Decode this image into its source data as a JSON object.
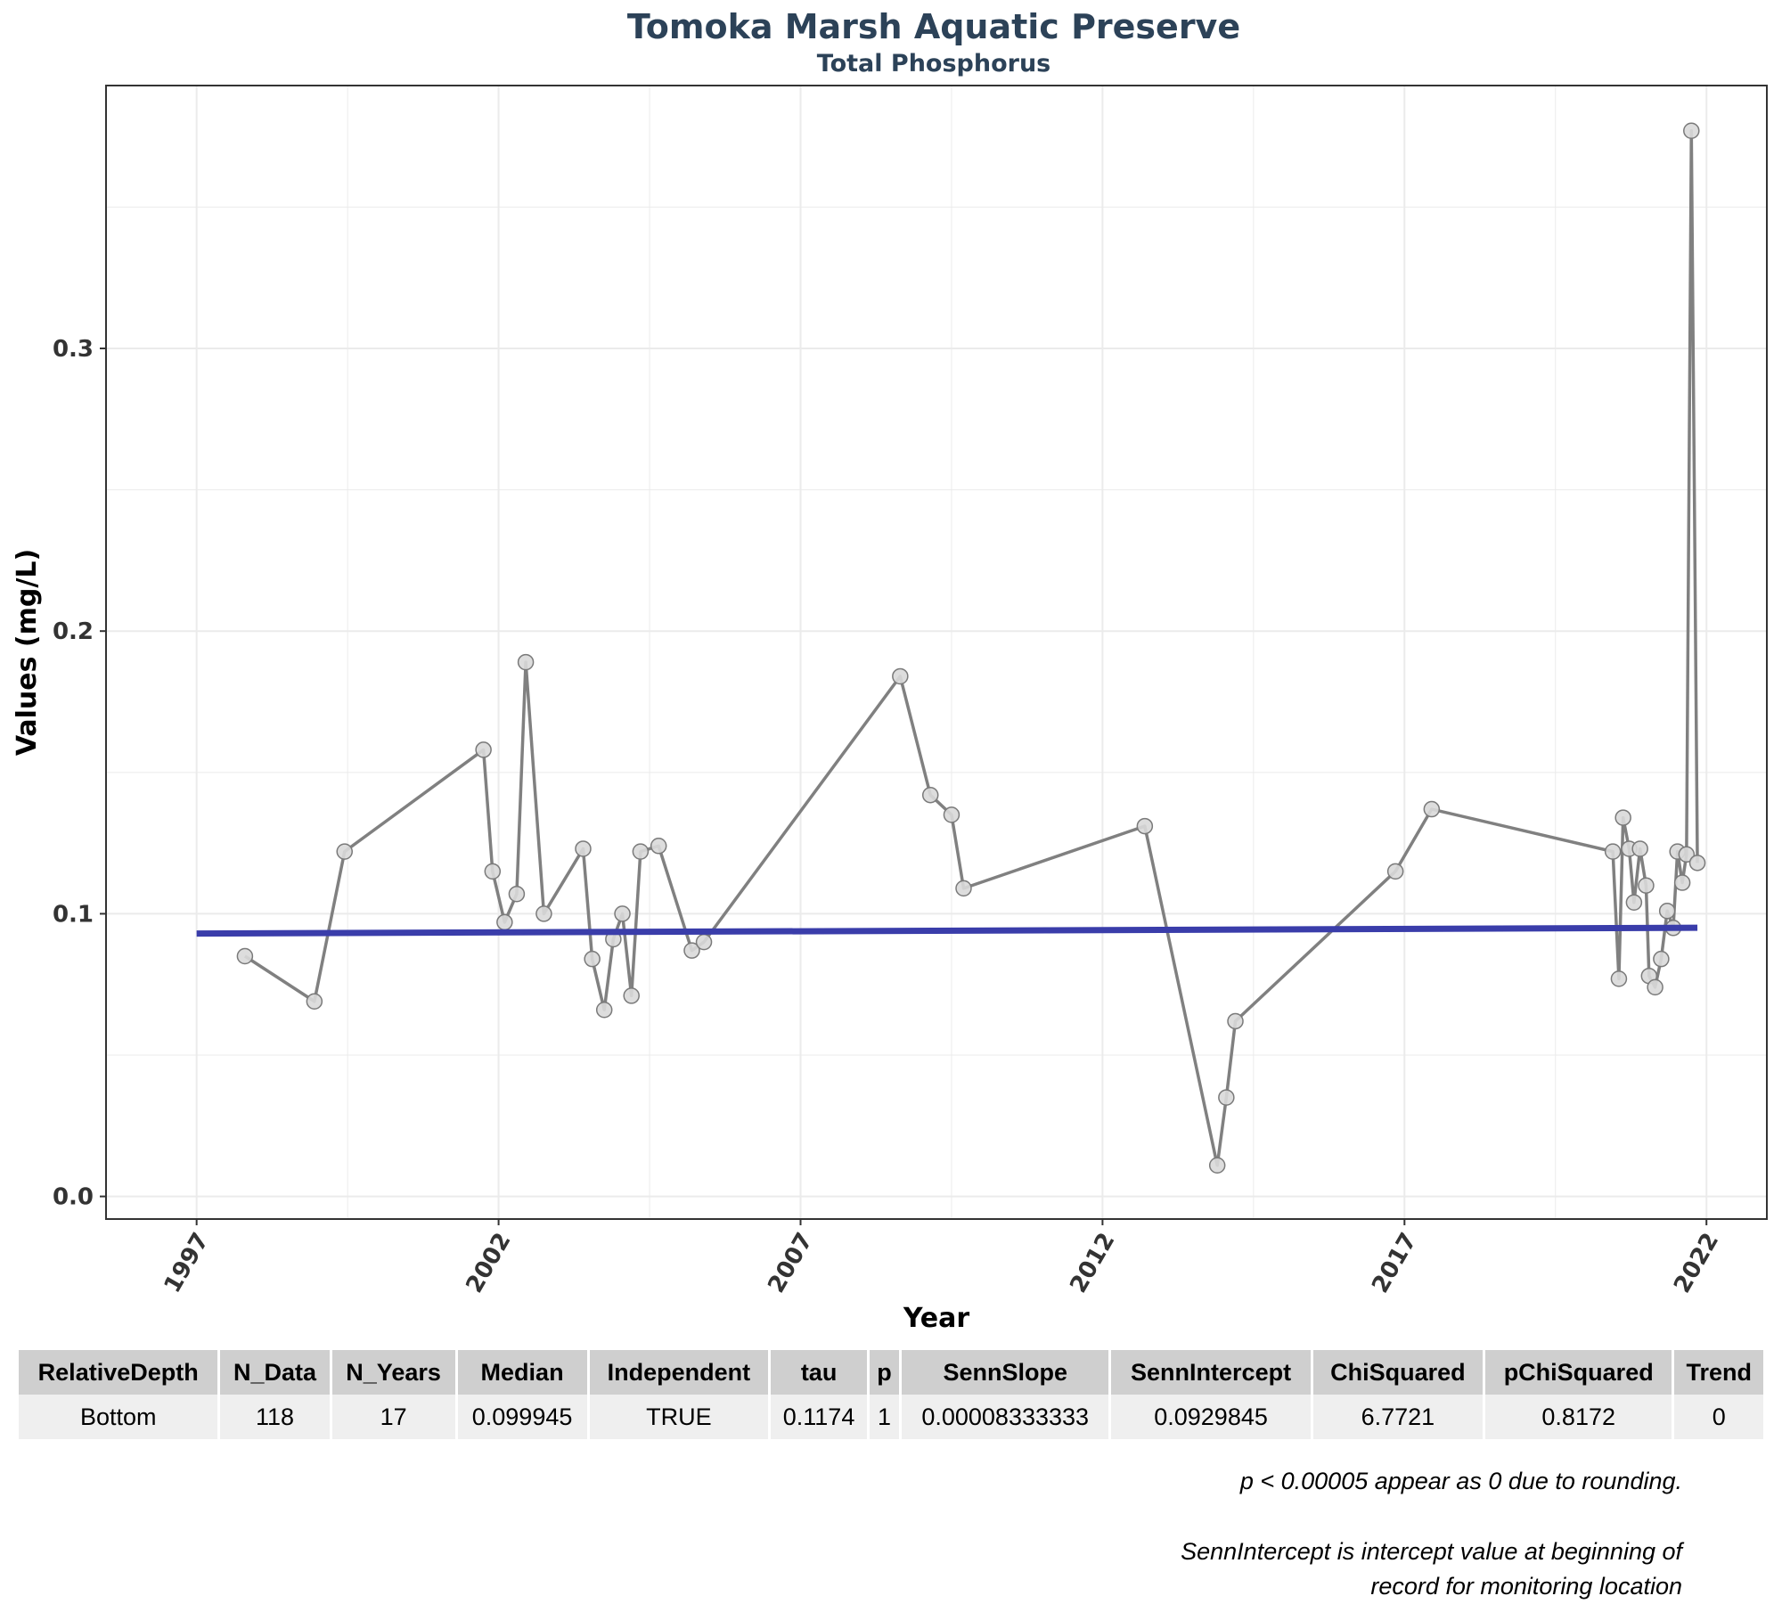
{
  "chart_data": {
    "type": "line",
    "title": "Tomoka Marsh Aquatic Preserve",
    "subtitle": "Total Phosphorus",
    "xlabel": "Year",
    "ylabel": "Values (mg/L)",
    "xlim": [
      1995.5,
      2023.0
    ],
    "ylim": [
      -0.008,
      0.393
    ],
    "x_ticks": [
      1997,
      2002,
      2007,
      2012,
      2017,
      2022
    ],
    "y_ticks": [
      0.0,
      0.1,
      0.2,
      0.3
    ],
    "grid": true,
    "series": [
      {
        "values": [
          [
            1997.8,
            0.085
          ],
          [
            1998.95,
            0.069
          ],
          [
            1999.45,
            0.122
          ],
          [
            2001.75,
            0.158
          ],
          [
            2001.9,
            0.115
          ],
          [
            2002.1,
            0.097
          ],
          [
            2002.3,
            0.107
          ],
          [
            2002.45,
            0.189
          ],
          [
            2002.75,
            0.1
          ],
          [
            2003.4,
            0.123
          ],
          [
            2003.55,
            0.084
          ],
          [
            2003.75,
            0.066
          ],
          [
            2003.9,
            0.091
          ],
          [
            2004.05,
            0.1
          ],
          [
            2004.2,
            0.071
          ],
          [
            2004.35,
            0.122
          ],
          [
            2004.65,
            0.124
          ],
          [
            2005.2,
            0.087
          ],
          [
            2005.4,
            0.09
          ],
          [
            2008.65,
            0.184
          ],
          [
            2009.15,
            0.142
          ],
          [
            2009.5,
            0.135
          ],
          [
            2009.7,
            0.109
          ],
          [
            2012.7,
            0.131
          ],
          [
            2013.9,
            0.011
          ],
          [
            2014.05,
            0.035
          ],
          [
            2014.2,
            0.062
          ],
          [
            2016.85,
            0.115
          ],
          [
            2017.45,
            0.137
          ],
          [
            2020.45,
            0.122
          ],
          [
            2020.55,
            0.077
          ],
          [
            2020.62,
            0.134
          ],
          [
            2020.72,
            0.123
          ],
          [
            2020.8,
            0.104
          ],
          [
            2020.9,
            0.123
          ],
          [
            2021.0,
            0.11
          ],
          [
            2021.05,
            0.078
          ],
          [
            2021.15,
            0.074
          ],
          [
            2021.25,
            0.084
          ],
          [
            2021.35,
            0.101
          ],
          [
            2021.45,
            0.095
          ],
          [
            2021.52,
            0.122
          ],
          [
            2021.6,
            0.111
          ],
          [
            2021.67,
            0.121
          ],
          [
            2021.75,
            0.377
          ],
          [
            2021.85,
            0.118
          ]
        ],
        "color": "#808080",
        "marker_color": "#d9d9d9"
      },
      {
        "values": [
          [
            1997.0,
            0.0929845
          ],
          [
            2021.85,
            0.0950553
          ]
        ],
        "color": "#3a3daa"
      }
    ]
  },
  "table": {
    "headers": [
      "RelativeDepth",
      "N_Data",
      "N_Years",
      "Median",
      "Independent",
      "tau",
      "p",
      "SennSlope",
      "SennIntercept",
      "ChiSquared",
      "pChiSquared",
      "Trend"
    ],
    "rows": [
      [
        "Bottom",
        "118",
        "17",
        "0.099945",
        "TRUE",
        "0.1174",
        "1",
        "0.00008333333",
        "0.0929845",
        "6.7721",
        "0.8172",
        "0"
      ]
    ]
  },
  "notes": {
    "rounding": "p < 0.00005 appear as 0 due to rounding.",
    "intercept_line1": "SennIntercept is intercept value at beginning of",
    "intercept_line2": "record for monitoring location"
  },
  "colors": {
    "title": "#2c4258",
    "data_line": "#808080",
    "trend_line": "#3a3daa",
    "grid": "#ebebeb"
  }
}
